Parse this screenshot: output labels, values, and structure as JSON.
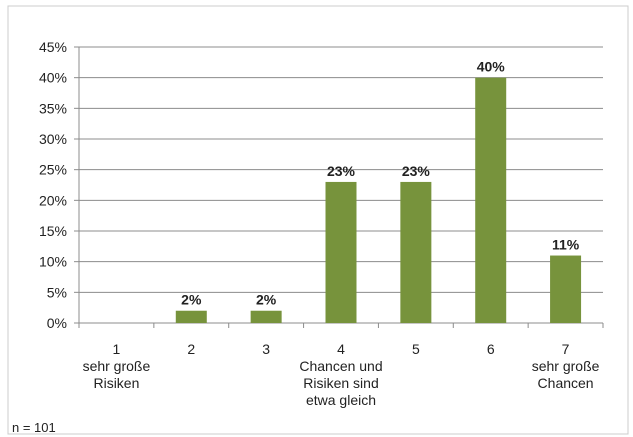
{
  "chart_data": {
    "type": "bar",
    "categories": [
      [
        "1",
        "sehr große",
        "Risiken"
      ],
      [
        "2"
      ],
      [
        "3"
      ],
      [
        "4",
        "Chancen und",
        "Risiken sind",
        "etwa gleich"
      ],
      [
        "5"
      ],
      [
        "6"
      ],
      [
        "7",
        "sehr große",
        "Chancen"
      ]
    ],
    "series": [
      {
        "values": [
          0,
          2,
          2,
          23,
          23,
          40,
          11
        ]
      }
    ],
    "data_labels": [
      "",
      "2%",
      "2%",
      "23%",
      "23%",
      "40%",
      "11%"
    ],
    "yticks": [
      0,
      5,
      10,
      15,
      20,
      25,
      30,
      35,
      40,
      45
    ],
    "ytick_labels": [
      "0%",
      "5%",
      "10%",
      "15%",
      "20%",
      "25%",
      "30%",
      "35%",
      "40%",
      "45%"
    ],
    "ylim": [
      0,
      45
    ],
    "grid": "horizontal",
    "bar_color": "#77933c",
    "footnote": "n = 101"
  }
}
